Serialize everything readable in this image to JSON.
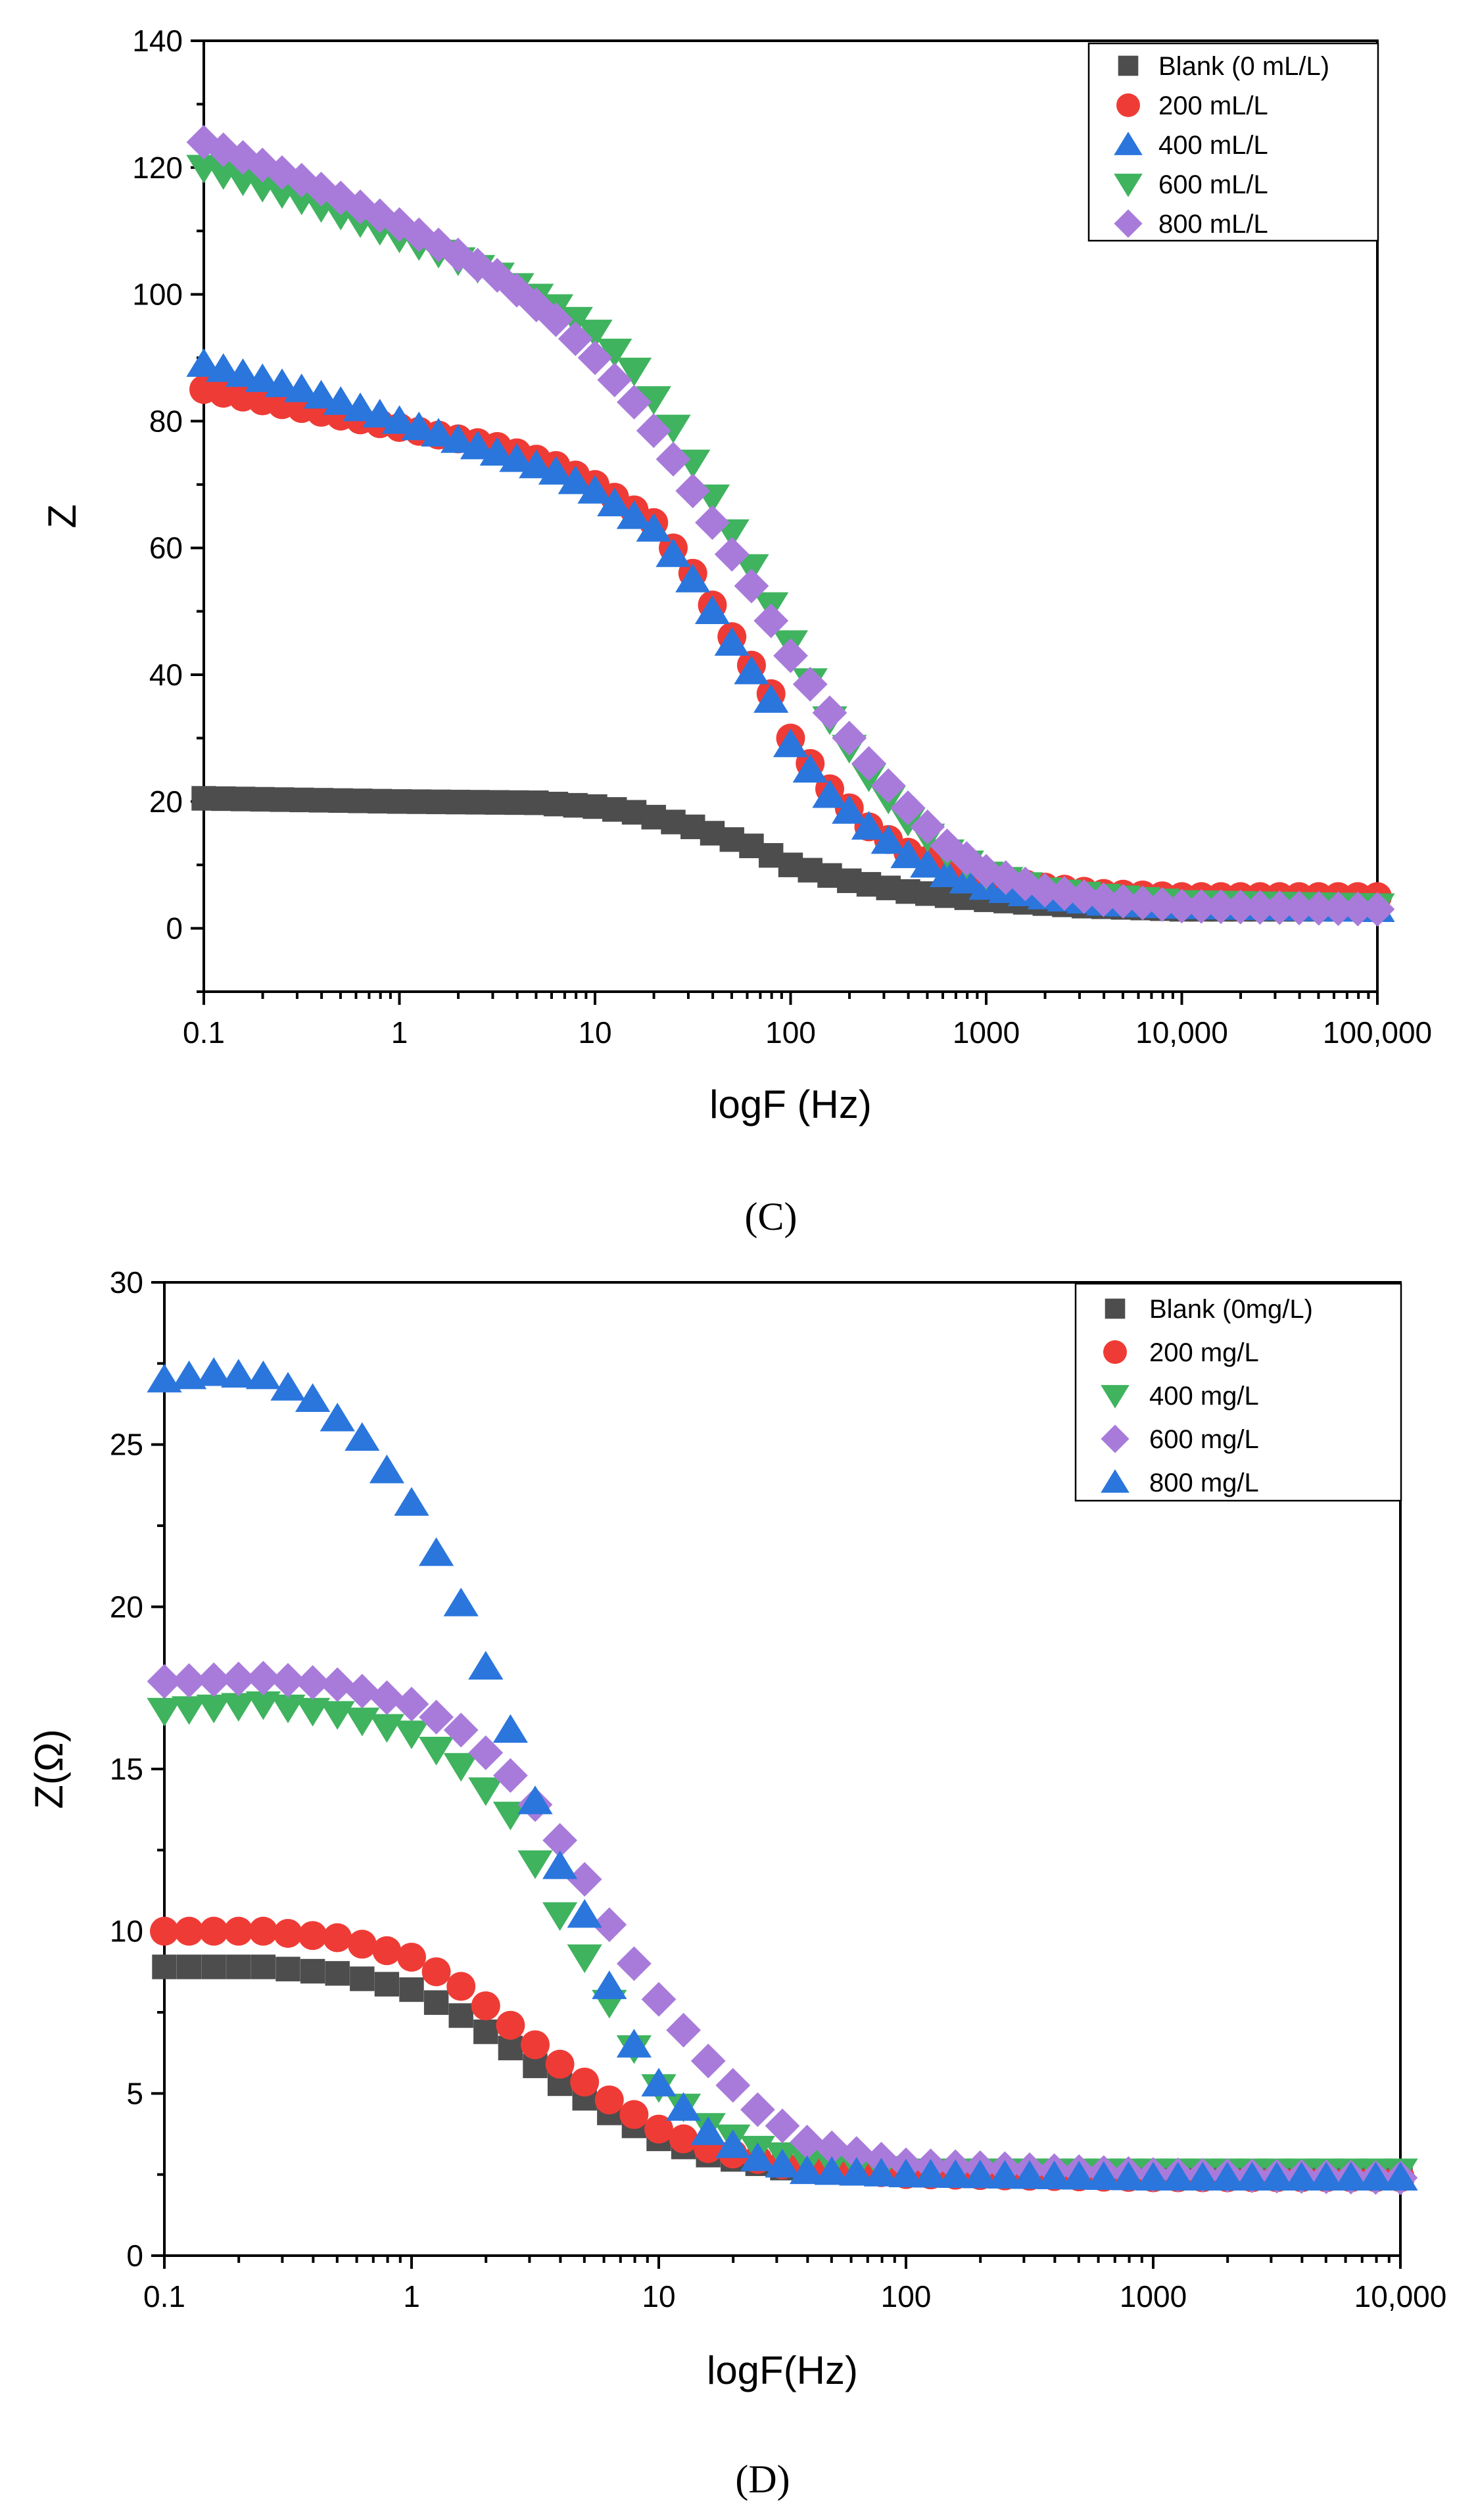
{
  "chart_data": [
    {
      "type": "scatter",
      "panel_label": "(C)",
      "title": "",
      "xlabel": "logF (Hz)",
      "ylabel": "Z",
      "x_scale": "log",
      "xlim": [
        0.1,
        100000
      ],
      "ylim": [
        -10,
        140
      ],
      "x_ticks": [
        0.1,
        1,
        10,
        100,
        1000,
        10000,
        100000
      ],
      "x_tick_labels": [
        "0.1",
        "1",
        "10",
        "100",
        "1000",
        "10,000",
        "100,000"
      ],
      "y_ticks": [
        0,
        20,
        40,
        60,
        80,
        100,
        120,
        140
      ],
      "y_tick_labels": [
        "0",
        "20",
        "40",
        "60",
        "80",
        "100",
        "120",
        "140"
      ],
      "legend_position": "top-right",
      "grid": false,
      "series": [
        {
          "name": "Blank (0 mL/L)",
          "marker": "square",
          "color": "#4d4d4d",
          "logf": [
            -1,
            0,
            0.7,
            1,
            1.2,
            1.5,
            1.8,
            2,
            2.3,
            2.6,
            3,
            3.5,
            4,
            5
          ],
          "z": [
            20.5,
            20,
            19.8,
            19.2,
            18.3,
            16,
            13,
            10,
            7.5,
            5.8,
            4.5,
            3.5,
            3,
            3
          ]
        },
        {
          "name": "200 mL/L",
          "marker": "circle",
          "color": "#ef3b36",
          "logf": [
            -1,
            -0.5,
            0,
            0.5,
            0.8,
            1,
            1.3,
            1.5,
            1.7,
            1.9,
            2,
            2.2,
            2.4,
            2.6,
            2.8,
            3,
            3.3,
            3.6,
            4,
            5
          ],
          "z": [
            85,
            82,
            79,
            76,
            73,
            70,
            64,
            56,
            46,
            37,
            30,
            22,
            16,
            12,
            9.5,
            8,
            6.5,
            5.5,
            5,
            5
          ]
        },
        {
          "name": "400 mL/L",
          "marker": "triangle-up",
          "color": "#2a76dd",
          "logf": [
            -1,
            -0.5,
            0,
            0.5,
            0.8,
            1,
            1.3,
            1.5,
            1.7,
            1.9,
            2,
            2.2,
            2.4,
            2.6,
            2.8,
            3,
            3.3,
            3.6,
            4,
            5
          ],
          "z": [
            89,
            85,
            80,
            75,
            72,
            69,
            63,
            55,
            45,
            36,
            29,
            21,
            16,
            11.5,
            8.5,
            6.5,
            5,
            4,
            3.5,
            3
          ]
        },
        {
          "name": "600 mL/L",
          "marker": "triangle-down",
          "color": "#3fb35e",
          "logf": [
            -1,
            -0.5,
            0,
            0.5,
            0.8,
            1,
            1.2,
            1.4,
            1.6,
            1.8,
            2,
            2.2,
            2.4,
            2.6,
            2.8,
            3,
            3.3,
            3.6,
            4,
            5
          ],
          "z": [
            120,
            115,
            109,
            103,
            98,
            94,
            88,
            79,
            68,
            57,
            45,
            33,
            24,
            17,
            12,
            8.5,
            6,
            5,
            4,
            3.5
          ]
        },
        {
          "name": "800 mL/L",
          "marker": "diamond",
          "color": "#a87bdb",
          "logf": [
            -1,
            -0.5,
            0,
            0.5,
            0.8,
            1,
            1.2,
            1.4,
            1.6,
            1.8,
            2,
            2.2,
            2.4,
            2.6,
            2.8,
            3,
            3.3,
            3.6,
            4,
            5
          ],
          "z": [
            124,
            118,
            111,
            103,
            96,
            90,
            83,
            74,
            64,
            54,
            43,
            34,
            26,
            19,
            13,
            9,
            6,
            4.5,
            3.5,
            3
          ]
        }
      ]
    },
    {
      "type": "scatter",
      "panel_label": "(D)",
      "title": "",
      "xlabel": "logF(Hz)",
      "ylabel": "Z(Ω)",
      "x_scale": "log",
      "xlim": [
        0.1,
        10000
      ],
      "ylim": [
        0,
        30
      ],
      "x_ticks": [
        0.1,
        1,
        10,
        100,
        1000,
        10000
      ],
      "x_tick_labels": [
        "0.1",
        "1",
        "10",
        "100",
        "1000",
        "10,000"
      ],
      "y_ticks": [
        0,
        5,
        10,
        15,
        20,
        25,
        30
      ],
      "y_tick_labels": [
        "0",
        "5",
        "10",
        "15",
        "20",
        "25",
        "30"
      ],
      "legend_position": "top-right",
      "grid": false,
      "series": [
        {
          "name": "Blank (0mg/L)",
          "marker": "square",
          "color": "#4d4d4d",
          "logf": [
            -1,
            -0.6,
            -0.3,
            0,
            0.2,
            0.4,
            0.6,
            0.8,
            1,
            1.2,
            1.5,
            2,
            3,
            4
          ],
          "z": [
            8.9,
            8.9,
            8.7,
            8.2,
            7.4,
            6.4,
            5.3,
            4.4,
            3.6,
            3.1,
            2.7,
            2.5,
            2.4,
            2.4
          ]
        },
        {
          "name": "200 mg/L",
          "marker": "circle",
          "color": "#ef3b36",
          "logf": [
            -1,
            -0.6,
            -0.3,
            0,
            0.2,
            0.4,
            0.6,
            0.8,
            1,
            1.2,
            1.5,
            2,
            3,
            4
          ],
          "z": [
            10,
            10,
            9.8,
            9.2,
            8.3,
            7.1,
            5.9,
            4.8,
            3.9,
            3.3,
            2.8,
            2.5,
            2.4,
            2.4
          ]
        },
        {
          "name": "400 mg/L",
          "marker": "triangle-down",
          "color": "#3fb35e",
          "logf": [
            -1,
            -0.6,
            -0.3,
            0,
            0.2,
            0.4,
            0.5,
            0.6,
            0.7,
            0.8,
            0.9,
            1,
            1.2,
            1.4,
            1.6,
            2,
            3,
            4
          ],
          "z": [
            16.8,
            17,
            16.7,
            16.1,
            15.1,
            13.6,
            12.1,
            10.5,
            9.2,
            7.8,
            6.4,
            5.2,
            4,
            3.3,
            2.9,
            2.6,
            2.6,
            2.6
          ]
        },
        {
          "name": "600 mg/L",
          "marker": "diamond",
          "color": "#a87bdb",
          "logf": [
            -1,
            -0.6,
            -0.3,
            0,
            0.2,
            0.4,
            0.5,
            0.6,
            0.7,
            0.8,
            0.9,
            1,
            1.2,
            1.4,
            1.6,
            2,
            3,
            4
          ],
          "z": [
            17.7,
            17.8,
            17.6,
            17,
            16.2,
            14.8,
            13.9,
            12.8,
            11.6,
            10.2,
            9,
            7.9,
            6,
            4.5,
            3.5,
            2.8,
            2.5,
            2.4
          ]
        },
        {
          "name": "800 mg/L",
          "marker": "triangle-up",
          "color": "#2a76dd",
          "logf": [
            -1,
            -0.8,
            -0.6,
            -0.4,
            -0.2,
            0,
            0.2,
            0.4,
            0.5,
            0.6,
            0.7,
            0.8,
            0.9,
            1,
            1.2,
            1.4,
            1.6,
            2,
            3,
            4
          ],
          "z": [
            27,
            27.2,
            27.1,
            26.4,
            25.2,
            23.2,
            20.1,
            16.2,
            14,
            12,
            10.5,
            8.3,
            6.5,
            5.3,
            3.8,
            3,
            2.6,
            2.5,
            2.4,
            2.4
          ]
        }
      ]
    }
  ]
}
